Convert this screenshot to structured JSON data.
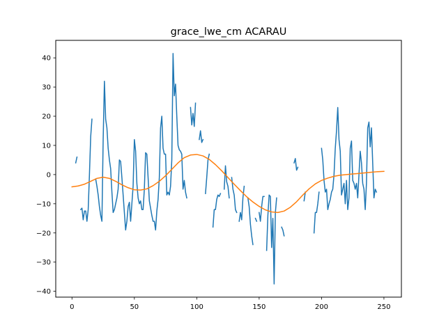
{
  "chart_data": {
    "type": "line",
    "title": "grace_lwe_cm ACARAU",
    "xlabel": "",
    "ylabel": "",
    "xlim": [
      -13,
      264
    ],
    "ylim": [
      -42,
      46
    ],
    "xticks": [
      0,
      50,
      100,
      150,
      200,
      250
    ],
    "yticks": [
      -40,
      -30,
      -20,
      -10,
      0,
      10,
      20,
      30,
      40
    ],
    "grid": false,
    "legend": "none",
    "series": [
      {
        "color": "#1f77b4",
        "segments": [
          [
            [
              3,
              4
            ],
            [
              4,
              6
            ]
          ],
          [
            [
              7,
              -12
            ],
            [
              8,
              -11.5
            ],
            [
              9,
              -15.5
            ],
            [
              10,
              -12.5
            ],
            [
              11,
              -12.5
            ],
            [
              12,
              -16
            ],
            [
              13,
              -12
            ],
            [
              14,
              0
            ],
            [
              15,
              13
            ],
            [
              16,
              19
            ]
          ],
          [
            [
              19,
              -1.5
            ],
            [
              20,
              -4
            ],
            [
              21,
              -7
            ],
            [
              22,
              -11
            ],
            [
              23,
              -14
            ],
            [
              24,
              -16
            ],
            [
              25,
              12
            ],
            [
              26,
              32
            ],
            [
              27,
              19
            ],
            [
              28,
              16
            ],
            [
              29,
              9
            ],
            [
              30,
              5
            ],
            [
              31,
              2
            ],
            [
              32,
              -6
            ],
            [
              33,
              -13
            ],
            [
              34,
              -12
            ],
            [
              35,
              -10
            ],
            [
              36,
              -8
            ],
            [
              37,
              -5
            ],
            [
              38,
              5
            ],
            [
              39,
              4.5
            ],
            [
              40,
              -1
            ],
            [
              41,
              -7
            ],
            [
              42,
              -13
            ],
            [
              43,
              -19
            ],
            [
              44,
              -16
            ],
            [
              45,
              -11
            ],
            [
              46,
              -9.5
            ],
            [
              47,
              -16
            ],
            [
              48,
              -10
            ],
            [
              49,
              -4
            ],
            [
              50,
              12
            ],
            [
              51,
              8
            ],
            [
              52,
              -3
            ],
            [
              53,
              -8
            ],
            [
              54,
              -10
            ],
            [
              55,
              -9
            ],
            [
              56,
              -12
            ],
            [
              57,
              -12
            ],
            [
              58,
              -5
            ],
            [
              59,
              7.5
            ],
            [
              60,
              7
            ],
            [
              61,
              -1
            ],
            [
              62,
              -9
            ],
            [
              63,
              -11.5
            ],
            [
              64,
              -14
            ],
            [
              65,
              -16
            ],
            [
              66,
              -16
            ],
            [
              67,
              -19
            ],
            [
              68,
              -12.5
            ],
            [
              69,
              -8.5
            ],
            [
              70,
              -1
            ],
            [
              71,
              16
            ],
            [
              72,
              20
            ],
            [
              73,
              9
            ],
            [
              74,
              7
            ],
            [
              75,
              7
            ],
            [
              76,
              -7
            ],
            [
              77,
              -6
            ],
            [
              78,
              -7
            ],
            [
              79,
              -4
            ],
            [
              80,
              5
            ],
            [
              81,
              41.5
            ],
            [
              82,
              27
            ],
            [
              83,
              31
            ],
            [
              84,
              20
            ],
            [
              85,
              10
            ],
            [
              86,
              8.5
            ],
            [
              87,
              8
            ],
            [
              88,
              7
            ],
            [
              89,
              -5
            ],
            [
              90,
              -2
            ],
            [
              91,
              -6
            ],
            [
              92,
              -8
            ]
          ],
          [
            [
              95,
              23
            ],
            [
              96,
              17
            ],
            [
              97,
              21
            ],
            [
              98,
              16.5
            ],
            [
              99,
              24.5
            ]
          ],
          [
            [
              102,
              12
            ],
            [
              103,
              15
            ],
            [
              104,
              11
            ],
            [
              105,
              12
            ]
          ],
          [
            [
              107,
              -6.5
            ],
            [
              108,
              -1
            ],
            [
              109,
              5
            ],
            [
              110,
              7
            ]
          ],
          [
            [
              113,
              -18
            ],
            [
              114,
              -12
            ],
            [
              115,
              -12
            ],
            [
              116,
              -8.5
            ],
            [
              117,
              -7
            ],
            [
              118,
              -7.5
            ],
            [
              119,
              -6.5
            ]
          ],
          [
            [
              122,
              -5
            ],
            [
              123,
              3
            ],
            [
              124,
              -2.5
            ],
            [
              125,
              -4
            ],
            [
              126,
              -8
            ]
          ],
          [
            [
              128,
              -1
            ],
            [
              129,
              -5
            ],
            [
              130,
              -7
            ],
            [
              131,
              -12
            ],
            [
              132,
              -13
            ]
          ],
          [
            [
              134,
              -16
            ],
            [
              135,
              -13
            ],
            [
              136,
              -15.5
            ],
            [
              137,
              -8
            ],
            [
              138,
              -4
            ]
          ],
          [
            [
              141,
              -8
            ],
            [
              142,
              -11
            ],
            [
              143,
              -17
            ],
            [
              144,
              -21
            ],
            [
              145,
              -24
            ]
          ],
          [
            [
              147,
              -15
            ],
            [
              148,
              -16
            ]
          ],
          [
            [
              150,
              -13
            ],
            [
              151,
              -16
            ],
            [
              152,
              -11
            ],
            [
              153,
              -7.5
            ],
            [
              154,
              -7.5
            ]
          ],
          [
            [
              156,
              -26
            ],
            [
              157,
              -14
            ],
            [
              158,
              -7
            ],
            [
              159,
              -7.5
            ],
            [
              160,
              -25
            ],
            [
              161,
              -15
            ],
            [
              162,
              -37.5
            ],
            [
              163,
              -13
            ],
            [
              164,
              -8
            ]
          ],
          [
            [
              168,
              -18
            ],
            [
              169,
              -19
            ],
            [
              170,
              -21
            ]
          ],
          [
            [
              178,
              4
            ],
            [
              179,
              5.5
            ],
            [
              180,
              1.5
            ],
            [
              181,
              2.5
            ]
          ],
          [
            [
              186,
              -9
            ],
            [
              187,
              -6
            ]
          ],
          [
            [
              190,
              -2
            ]
          ],
          [
            [
              194,
              -20
            ],
            [
              195,
              -13
            ],
            [
              196,
              -13
            ],
            [
              197,
              -10
            ],
            [
              198,
              -6
            ]
          ],
          [
            [
              200,
              9
            ],
            [
              201,
              5
            ],
            [
              202,
              -2
            ],
            [
              203,
              -6
            ],
            [
              204,
              -5
            ],
            [
              205,
              -12
            ],
            [
              206,
              -10
            ],
            [
              207,
              -8.5
            ],
            [
              208,
              -6
            ],
            [
              209,
              -5
            ],
            [
              210,
              0
            ],
            [
              211,
              9
            ],
            [
              212,
              15
            ],
            [
              213,
              23
            ],
            [
              214,
              12
            ],
            [
              215,
              8
            ],
            [
              216,
              -7
            ],
            [
              217,
              -5
            ],
            [
              218,
              -3
            ],
            [
              219,
              -10
            ],
            [
              220,
              -2
            ],
            [
              221,
              -12
            ],
            [
              222,
              -8
            ],
            [
              223,
              9
            ],
            [
              224,
              11.5
            ],
            [
              225,
              -2
            ],
            [
              226,
              -3
            ],
            [
              227,
              -5
            ],
            [
              228,
              -3
            ],
            [
              229,
              -8
            ],
            [
              230,
              0
            ],
            [
              231,
              8
            ],
            [
              232,
              4
            ],
            [
              233,
              -3
            ],
            [
              234,
              -5
            ],
            [
              235,
              -12
            ],
            [
              236,
              -3
            ],
            [
              237,
              16
            ],
            [
              238,
              18
            ],
            [
              239,
              9.5
            ],
            [
              240,
              16
            ],
            [
              241,
              4
            ],
            [
              242,
              -8
            ],
            [
              243,
              -5
            ],
            [
              244,
              -6
            ]
          ]
        ]
      },
      {
        "color": "#ff7f0e",
        "points": [
          [
            0,
            -4.2
          ],
          [
            5,
            -3.9
          ],
          [
            10,
            -3.3
          ],
          [
            15,
            -2.3
          ],
          [
            20,
            -1.3
          ],
          [
            25,
            -0.9
          ],
          [
            30,
            -1.3
          ],
          [
            35,
            -2.3
          ],
          [
            40,
            -3.5
          ],
          [
            45,
            -4.5
          ],
          [
            50,
            -5.2
          ],
          [
            55,
            -5.3
          ],
          [
            60,
            -4.9
          ],
          [
            65,
            -3.8
          ],
          [
            70,
            -2.3
          ],
          [
            75,
            -0.4
          ],
          [
            80,
            1.8
          ],
          [
            85,
            4.0
          ],
          [
            90,
            5.8
          ],
          [
            95,
            6.7
          ],
          [
            100,
            6.9
          ],
          [
            105,
            6.4
          ],
          [
            110,
            5.2
          ],
          [
            115,
            3.4
          ],
          [
            120,
            1.3
          ],
          [
            125,
            -1.0
          ],
          [
            130,
            -3.3
          ],
          [
            135,
            -5.5
          ],
          [
            140,
            -7.6
          ],
          [
            145,
            -9.4
          ],
          [
            150,
            -10.9
          ],
          [
            155,
            -12.1
          ],
          [
            160,
            -12.8
          ],
          [
            165,
            -13.0
          ],
          [
            170,
            -12.5
          ],
          [
            175,
            -11.2
          ],
          [
            180,
            -9.3
          ],
          [
            185,
            -7.0
          ],
          [
            190,
            -4.9
          ],
          [
            195,
            -3.2
          ],
          [
            200,
            -2.0
          ],
          [
            205,
            -1.2
          ],
          [
            210,
            -0.6
          ],
          [
            215,
            -0.2
          ],
          [
            220,
            0.0
          ],
          [
            225,
            0.2
          ],
          [
            230,
            0.4
          ],
          [
            235,
            0.6
          ],
          [
            240,
            0.8
          ],
          [
            245,
            1.0
          ],
          [
            250,
            1.1
          ]
        ]
      }
    ]
  }
}
